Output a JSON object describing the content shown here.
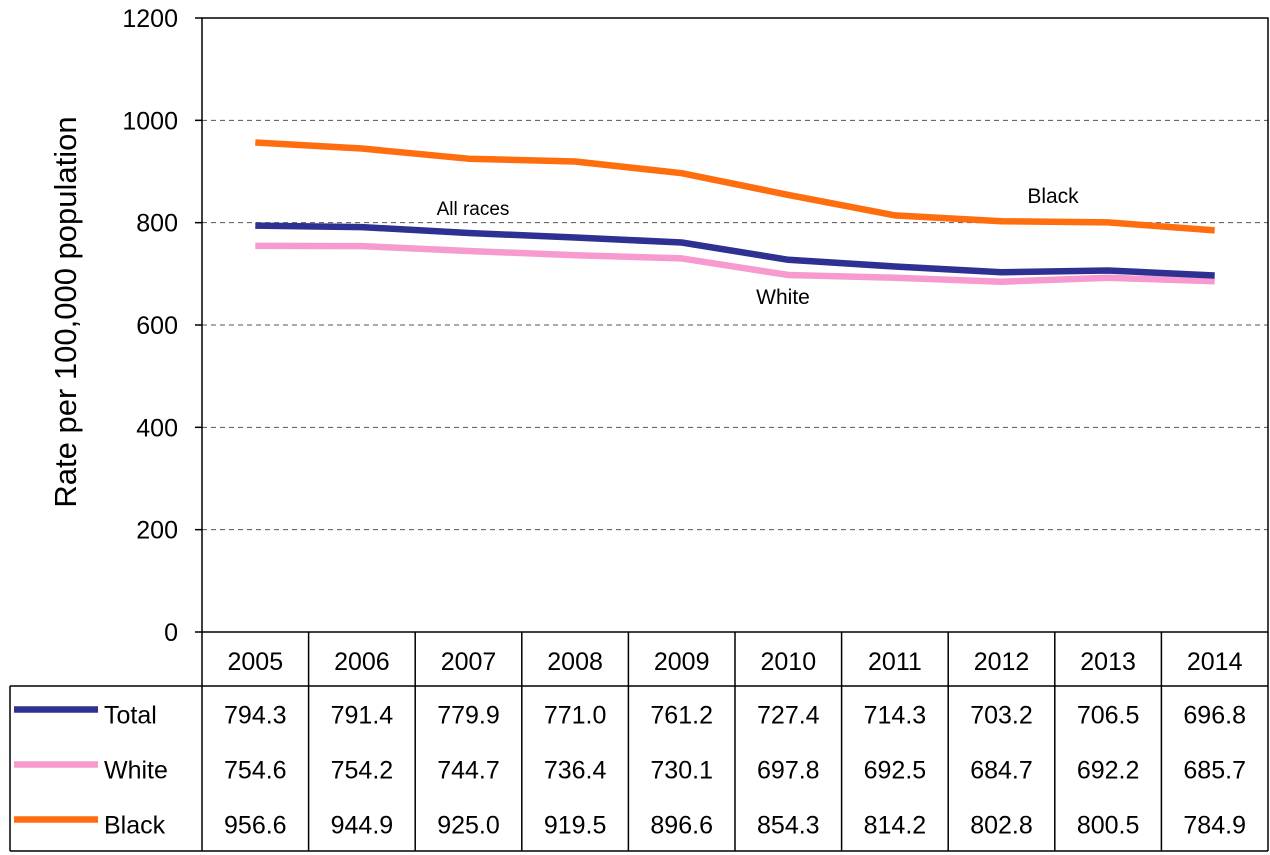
{
  "chart_data": {
    "type": "line",
    "ylabel": "Rate per 100,000 population",
    "ylim": [
      0,
      1200
    ],
    "yticks": [
      "0",
      "200",
      "400",
      "600",
      "800",
      "1000",
      "1200"
    ],
    "grid": "horizontal-dashed",
    "categories": [
      "2005",
      "2006",
      "2007",
      "2008",
      "2009",
      "2010",
      "2011",
      "2012",
      "2013",
      "2014"
    ],
    "series": [
      {
        "name": "Total",
        "color": "#2e3192",
        "values": [
          794.3,
          791.4,
          779.9,
          771.0,
          761.2,
          727.4,
          714.3,
          703.2,
          706.5,
          696.8
        ],
        "labels": [
          "794.3",
          "791.4",
          "779.9",
          "771.0",
          "761.2",
          "727.4",
          "714.3",
          "703.2",
          "706.5",
          "696.8"
        ]
      },
      {
        "name": "White",
        "color": "#f79ad0",
        "values": [
          754.6,
          754.2,
          744.7,
          736.4,
          730.1,
          697.8,
          692.5,
          684.7,
          692.2,
          685.7
        ],
        "labels": [
          "754.6",
          "754.2",
          "744.7",
          "736.4",
          "730.1",
          "697.8",
          "692.5",
          "684.7",
          "692.2",
          "685.7"
        ]
      },
      {
        "name": "Black",
        "color": "#ff6e0e",
        "values": [
          956.6,
          944.9,
          925.0,
          919.5,
          896.6,
          854.3,
          814.2,
          802.8,
          800.5,
          784.9
        ],
        "labels": [
          "956.6",
          "944.9",
          "925.0",
          "919.5",
          "896.6",
          "854.3",
          "814.2",
          "802.8",
          "800.5",
          "784.9"
        ]
      }
    ],
    "annotations": [
      {
        "text": "All races",
        "series": "Total",
        "near": "2007"
      },
      {
        "text": "White",
        "series": "White",
        "near": "2010"
      },
      {
        "text": "Black",
        "series": "Black",
        "near": "2013"
      }
    ]
  }
}
